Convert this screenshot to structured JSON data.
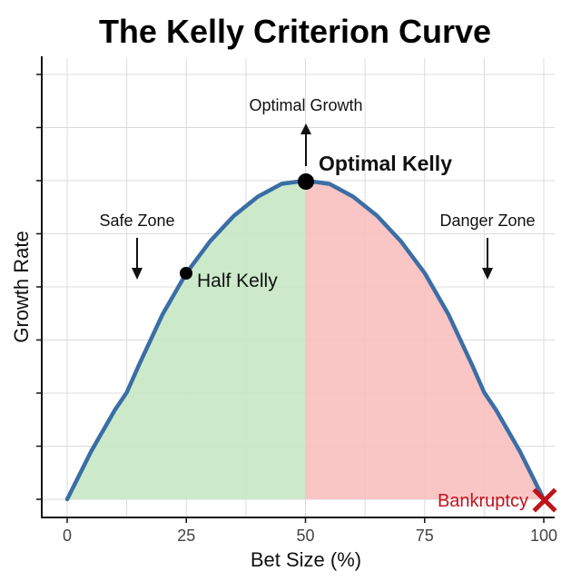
{
  "chart_data": {
    "type": "area",
    "title": "The Kelly Criterion Curve",
    "xlabel": "Bet Size (%)",
    "ylabel": "Growth Rate",
    "xlim": [
      0,
      100
    ],
    "ylim": [
      0,
      1
    ],
    "x_ticks": [
      "0",
      "25",
      "50",
      "75",
      "100"
    ],
    "y_ticks_labeled": false,
    "grid": true,
    "series": [
      {
        "name": "Growth Rate",
        "color": "#3a6ea5",
        "x": [
          0,
          5,
          10,
          12.5,
          15,
          20,
          25,
          30,
          35,
          40,
          45,
          50,
          55,
          60,
          65,
          70,
          75,
          80,
          85,
          87.5,
          90,
          95,
          100
        ],
        "y": [
          0,
          0.15,
          0.28,
          0.335,
          0.42,
          0.58,
          0.71,
          0.81,
          0.89,
          0.95,
          0.99,
          1.0,
          0.99,
          0.95,
          0.89,
          0.81,
          0.71,
          0.58,
          0.42,
          0.335,
          0.28,
          0.15,
          0
        ]
      }
    ],
    "regions": [
      {
        "name": "Safe Zone",
        "x_range": [
          0,
          50
        ],
        "color": "#c6e8c4"
      },
      {
        "name": "Danger Zone",
        "x_range": [
          50,
          100
        ],
        "color": "#f9bfbf"
      }
    ],
    "annotations": [
      {
        "text": "Optimal Kelly",
        "x": 50,
        "y": 1.0,
        "marker": "dot",
        "style": "bold"
      },
      {
        "text": "Optimal Growth",
        "x": 50,
        "arrow": "up"
      },
      {
        "text": "Half Kelly",
        "x": 25,
        "y": 0.71,
        "marker": "dot"
      },
      {
        "text": "Safe Zone",
        "x": 15,
        "arrow": "down"
      },
      {
        "text": "Danger Zone",
        "x": 88,
        "arrow": "down"
      },
      {
        "text": "Bankruptcy",
        "x": 100,
        "y": 0,
        "marker": "x",
        "color": "#c0141c"
      }
    ]
  },
  "colors": {
    "curve": "#3a6ea5",
    "safe_fill": "#c6e8c4",
    "danger_fill": "#f9bfbf",
    "bankruptcy": "#c0141c"
  }
}
